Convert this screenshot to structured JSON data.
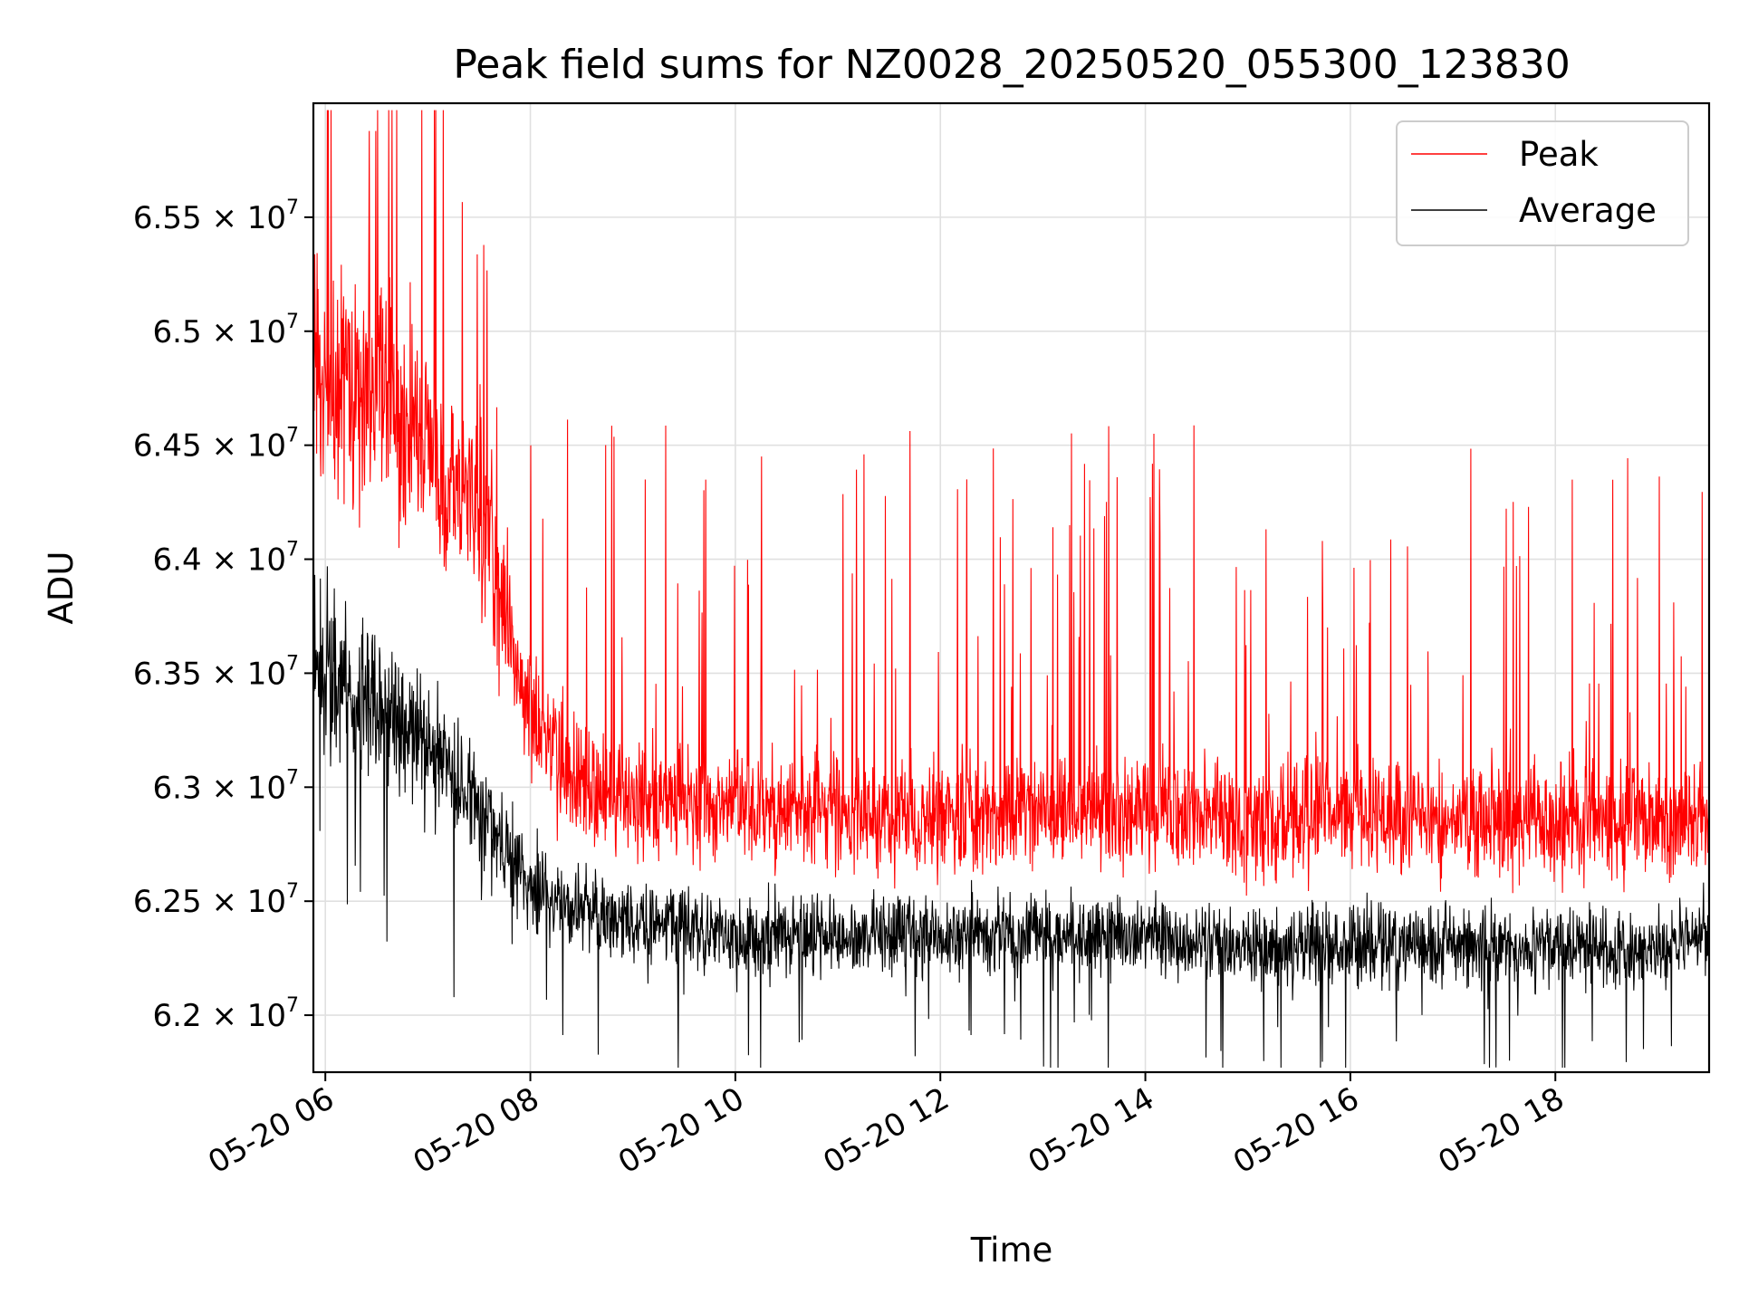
{
  "chart_data": {
    "type": "line",
    "title": "Peak field sums for NZ0028_20250520_055300_123830",
    "xlabel": "Time",
    "ylabel": "ADU",
    "xlim": [
      "2025-05-20 05:53",
      "2025-05-20 19:30"
    ],
    "ylim": [
      61750000,
      66000000
    ],
    "grid": true,
    "legend_position": "upper right",
    "x_ticks": [
      {
        "value": "2025-05-20 06:00",
        "label": "05-20 06"
      },
      {
        "value": "2025-05-20 08:00",
        "label": "05-20 08"
      },
      {
        "value": "2025-05-20 10:00",
        "label": "05-20 10"
      },
      {
        "value": "2025-05-20 12:00",
        "label": "05-20 12"
      },
      {
        "value": "2025-05-20 14:00",
        "label": "05-20 14"
      },
      {
        "value": "2025-05-20 16:00",
        "label": "05-20 16"
      },
      {
        "value": "2025-05-20 18:00",
        "label": "05-20 18"
      }
    ],
    "y_ticks": [
      {
        "value": 62000000,
        "mantissa": "6.2",
        "base": "× 10",
        "exponent": "7"
      },
      {
        "value": 62500000,
        "mantissa": "6.25",
        "base": "× 10",
        "exponent": "7"
      },
      {
        "value": 63000000,
        "mantissa": "6.3",
        "base": "× 10",
        "exponent": "7"
      },
      {
        "value": 63500000,
        "mantissa": "6.35",
        "base": "× 10",
        "exponent": "7"
      },
      {
        "value": 64000000,
        "mantissa": "6.4",
        "base": "× 10",
        "exponent": "7"
      },
      {
        "value": 64500000,
        "mantissa": "6.45",
        "base": "× 10",
        "exponent": "7"
      },
      {
        "value": 65000000,
        "mantissa": "6.5",
        "base": "× 10",
        "exponent": "7"
      },
      {
        "value": 65500000,
        "mantissa": "6.55",
        "base": "× 10",
        "exponent": "7"
      }
    ],
    "series": [
      {
        "name": "Peak",
        "color": "#ff0000",
        "x": [
          "2025-05-20 05:53",
          "2025-05-20 06:00",
          "2025-05-20 06:30",
          "2025-05-20 07:00",
          "2025-05-20 07:30",
          "2025-05-20 08:00",
          "2025-05-20 08:30",
          "2025-05-20 09:00",
          "2025-05-20 10:00",
          "2025-05-20 11:00",
          "2025-05-20 12:00",
          "2025-05-20 13:00",
          "2025-05-20 14:00",
          "2025-05-20 15:00",
          "2025-05-20 16:00",
          "2025-05-20 17:00",
          "2025-05-20 18:00",
          "2025-05-20 19:00",
          "2025-05-20 19:30"
        ],
        "values": [
          64900000,
          64800000,
          64700000,
          64500000,
          64200000,
          63300000,
          63000000,
          62950000,
          62900000,
          62900000,
          62850000,
          62900000,
          62900000,
          62850000,
          62900000,
          62850000,
          62850000,
          62850000,
          62850000
        ],
        "spread": [
          600000,
          600000,
          550000,
          500000,
          450000,
          350000,
          300000,
          280000,
          280000,
          280000,
          280000,
          280000,
          280000,
          280000,
          280000,
          280000,
          280000,
          280000,
          280000
        ],
        "spike_max": 65970000
      },
      {
        "name": "Average",
        "color": "#000000",
        "x": [
          "2025-05-20 05:53",
          "2025-05-20 06:00",
          "2025-05-20 06:30",
          "2025-05-20 07:00",
          "2025-05-20 07:30",
          "2025-05-20 08:00",
          "2025-05-20 08:30",
          "2025-05-20 09:00",
          "2025-05-20 10:00",
          "2025-05-20 11:00",
          "2025-05-20 12:00",
          "2025-05-20 13:00",
          "2025-05-20 14:00",
          "2025-05-20 15:00",
          "2025-05-20 16:00",
          "2025-05-20 17:00",
          "2025-05-20 18:00",
          "2025-05-20 19:00",
          "2025-05-20 19:30"
        ],
        "values": [
          63500000,
          63500000,
          63350000,
          63200000,
          62900000,
          62600000,
          62450000,
          62400000,
          62350000,
          62350000,
          62350000,
          62350000,
          62350000,
          62300000,
          62300000,
          62300000,
          62300000,
          62300000,
          62350000
        ],
        "spread": [
          400000,
          400000,
          350000,
          320000,
          280000,
          230000,
          200000,
          190000,
          190000,
          190000,
          190000,
          190000,
          190000,
          190000,
          190000,
          190000,
          190000,
          190000,
          190000
        ],
        "min": 61770000
      }
    ]
  }
}
